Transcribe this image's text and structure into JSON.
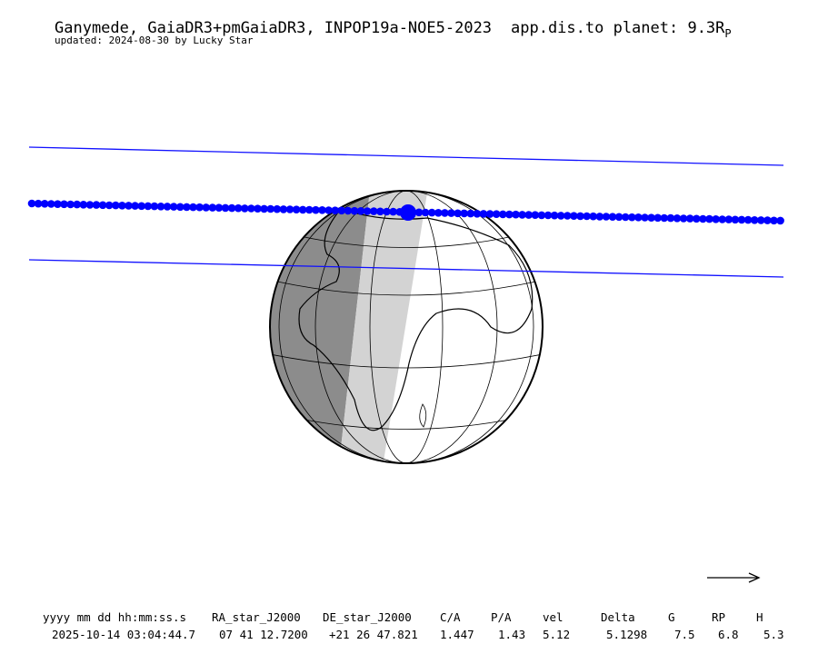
{
  "header": {
    "title": "Ganymede, GaiaDR3+pmGaiaDR3, INPOP19a-NOE5-2023",
    "distance": {
      "label": "app.dis.to planet: 9.3R",
      "subscript": "P"
    },
    "subtitle": "updated: 2024-08-30 by Lucky Star"
  },
  "table": {
    "headers": [
      "yyyy mm dd hh:mm:ss.s",
      "RA_star_J2000",
      "DE_star_J2000",
      "C/A",
      "P/A",
      "vel",
      "Delta",
      "G",
      "RP",
      "H"
    ],
    "rows": [
      [
        "2025-10-14 03:04:44.7",
        "07 41 12.7200",
        "+21 26 47.821",
        "1.447",
        "1.43",
        "5.12",
        "5.1298",
        "7.5",
        "6.8",
        "5.3"
      ]
    ]
  }
}
